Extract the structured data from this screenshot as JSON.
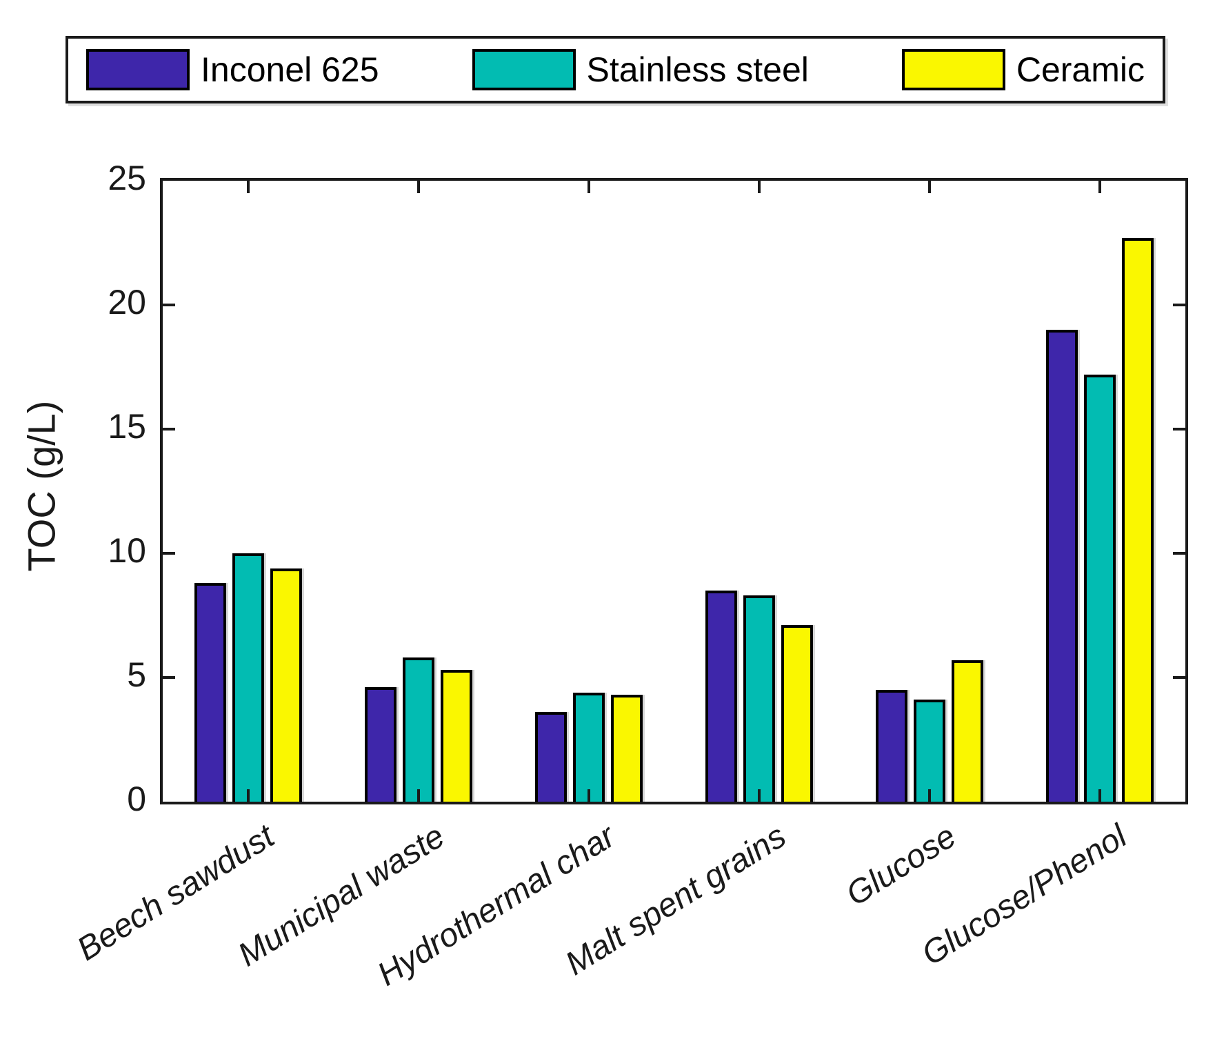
{
  "legend": {
    "items": [
      {
        "label": "Inconel 625",
        "color": "#3E26AA"
      },
      {
        "label": "Stainless steel",
        "color": "#02BCB2"
      },
      {
        "label": "Ceramic",
        "color": "#FAF700"
      }
    ]
  },
  "chart_data": {
    "type": "bar",
    "title": "",
    "xlabel": "",
    "ylabel": "TOC (g/L)",
    "categories": [
      "Beech sawdust",
      "Municipal waste",
      "Hydrothermal char",
      "Malt spent grains",
      "Glucose",
      "Glucose/Phenol"
    ],
    "series": [
      {
        "name": "Inconel 625",
        "color": "#3E26AA",
        "values": [
          8.8,
          4.6,
          3.6,
          8.5,
          4.5,
          19.0
        ]
      },
      {
        "name": "Stainless steel",
        "color": "#02BCB2",
        "values": [
          10.0,
          5.8,
          4.4,
          8.3,
          4.1,
          17.2
        ]
      },
      {
        "name": "Ceramic",
        "color": "#FAF700",
        "values": [
          9.4,
          5.3,
          4.3,
          7.1,
          5.7,
          22.7
        ]
      }
    ],
    "ylim": [
      0,
      25
    ],
    "yticks": [
      0,
      5,
      10,
      15,
      20,
      25
    ],
    "grid": false,
    "legend_position": "top",
    "tick_direction": "in",
    "box": true
  }
}
